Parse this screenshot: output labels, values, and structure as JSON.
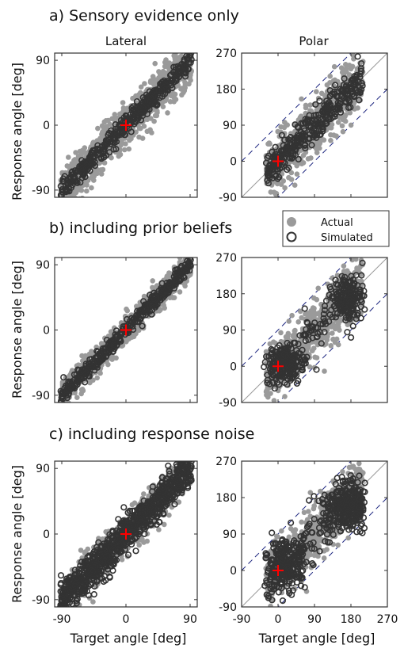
{
  "figure": {
    "row_titles": [
      "a) Sensory evidence only",
      "b) including prior beliefs",
      "c) including response noise"
    ],
    "col_titles": [
      "Lateral",
      "Polar"
    ],
    "ylabel": "Response angle [deg]",
    "xlabel": "Target angle [deg]",
    "legend": {
      "actual": "Actual",
      "simulated": "Simulated",
      "placement": "between row a and row b, right column"
    },
    "colors": {
      "actual": "#9a9a9a",
      "simulated": "#333333",
      "target_marker": "#ff0000",
      "diagonal": "#999999",
      "dashed": "#1a237e"
    }
  },
  "chart_data": [
    {
      "type": "scatter",
      "row": "a",
      "panel": "Lateral",
      "xlim": [
        -100,
        100
      ],
      "ylim": [
        -100,
        100
      ],
      "xticks": [
        -90,
        0,
        90
      ],
      "yticks": [
        -90,
        0,
        90
      ],
      "target_marker": [
        0,
        0
      ],
      "series": [
        {
          "name": "Actual",
          "style": "filled-circle",
          "trend": "y = x",
          "spread_deg": 16,
          "n_points": 900
        },
        {
          "name": "Simulated",
          "style": "open-circle",
          "trend": "y = x",
          "spread_deg": 7,
          "n_points": 450
        }
      ]
    },
    {
      "type": "scatter",
      "row": "a",
      "panel": "Polar",
      "xlim": [
        -90,
        270
      ],
      "ylim": [
        -90,
        270
      ],
      "xticks": [
        -90,
        0,
        90,
        180,
        270
      ],
      "yticks": [
        -90,
        0,
        90,
        180,
        270
      ],
      "target_marker": [
        0,
        0
      ],
      "x_data_range": [
        -30,
        210
      ],
      "diagonal": true,
      "dashed_offsets": [
        90,
        -90
      ],
      "series": [
        {
          "name": "Actual",
          "style": "filled-circle",
          "trend": "y = x",
          "spread_deg": 35,
          "n_points": 700
        },
        {
          "name": "Simulated",
          "style": "open-circle",
          "trend": "y = x",
          "spread_deg": 20,
          "n_points": 350
        }
      ]
    },
    {
      "type": "scatter",
      "row": "b",
      "panel": "Lateral",
      "xlim": [
        -100,
        100
      ],
      "ylim": [
        -100,
        100
      ],
      "xticks": [
        -90,
        0,
        90
      ],
      "yticks": [
        -90,
        0,
        90
      ],
      "target_marker": [
        0,
        0
      ],
      "series": [
        {
          "name": "Actual",
          "style": "filled-circle",
          "trend": "y = x",
          "spread_deg": 10,
          "n_points": 900
        },
        {
          "name": "Simulated",
          "style": "open-circle",
          "trend": "y = x",
          "spread_deg": 6,
          "n_points": 450
        }
      ]
    },
    {
      "type": "scatter",
      "row": "b",
      "panel": "Polar",
      "xlim": [
        -90,
        270
      ],
      "ylim": [
        -90,
        270
      ],
      "xticks": [
        -90,
        0,
        90,
        180,
        270
      ],
      "yticks": [
        -90,
        0,
        90,
        180,
        270
      ],
      "target_marker": [
        0,
        0
      ],
      "x_data_range": [
        -30,
        210
      ],
      "diagonal": true,
      "dashed_offsets": [
        90,
        -90
      ],
      "series": [
        {
          "name": "Actual",
          "style": "filled-circle",
          "trend": "y = x",
          "spread_deg": 35,
          "n_points": 700
        },
        {
          "name": "Simulated",
          "style": "open-circle",
          "clusters": [
            [
              20,
              10
            ],
            [
              170,
              165
            ]
          ],
          "spread_deg": 25,
          "n_points": 450
        }
      ]
    },
    {
      "type": "scatter",
      "row": "c",
      "panel": "Lateral",
      "xlim": [
        -100,
        100
      ],
      "ylim": [
        -100,
        100
      ],
      "xticks": [
        -90,
        0,
        90
      ],
      "yticks": [
        -90,
        0,
        90
      ],
      "target_marker": [
        0,
        0
      ],
      "series": [
        {
          "name": "Actual",
          "style": "filled-circle",
          "trend": "y = x",
          "spread_deg": 14,
          "n_points": 900
        },
        {
          "name": "Simulated",
          "style": "open-circle",
          "trend": "y = x",
          "spread_deg": 13,
          "n_points": 900
        }
      ]
    },
    {
      "type": "scatter",
      "row": "c",
      "panel": "Polar",
      "xlim": [
        -90,
        270
      ],
      "ylim": [
        -90,
        270
      ],
      "xticks": [
        -90,
        0,
        90,
        180,
        270
      ],
      "yticks": [
        -90,
        0,
        90,
        180,
        270
      ],
      "target_marker": [
        0,
        0
      ],
      "x_data_range": [
        -30,
        210
      ],
      "diagonal": true,
      "dashed_offsets": [
        90,
        -90
      ],
      "series": [
        {
          "name": "Actual",
          "style": "filled-circle",
          "trend": "y = x",
          "spread_deg": 35,
          "n_points": 700
        },
        {
          "name": "Simulated",
          "style": "open-circle",
          "clusters": [
            [
              20,
              15
            ],
            [
              170,
              160
            ]
          ],
          "spread_deg": 30,
          "n_points": 700
        }
      ]
    }
  ]
}
